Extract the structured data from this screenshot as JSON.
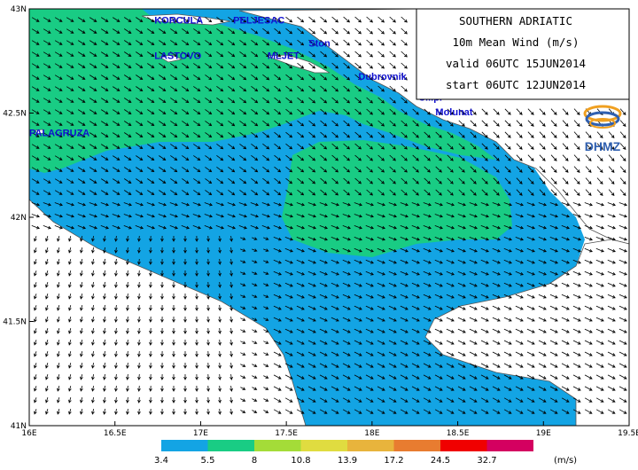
{
  "title_box": {
    "region": "SOUTHERN ADRIATIC",
    "field": "10m Mean Wind (m/s)",
    "valid": "valid 06UTC 15JUN2014",
    "start": "start 06UTC 12JUN2014"
  },
  "logo": {
    "text": "DHMZ"
  },
  "places": [
    {
      "name": "KORCULA",
      "lon": 16.73,
      "lat": 42.93
    },
    {
      "name": "PELJESAC",
      "lon": 17.19,
      "lat": 42.93
    },
    {
      "name": "Ston",
      "lon": 17.63,
      "lat": 42.82
    },
    {
      "name": "LASTOVO",
      "lon": 16.73,
      "lat": 42.76
    },
    {
      "name": "MLJET",
      "lon": 17.39,
      "lat": 42.76
    },
    {
      "name": "Dubrovnik",
      "lon": 17.92,
      "lat": 42.66
    },
    {
      "name": "Cilipi",
      "lon": 18.27,
      "lat": 42.56
    },
    {
      "name": "Molunat",
      "lon": 18.37,
      "lat": 42.49
    },
    {
      "name": "PALAGRUZA",
      "lon": 16.0,
      "lat": 42.39
    }
  ],
  "axes": {
    "x_ticks": [
      "16E",
      "16.5E",
      "17E",
      "17.5E",
      "18E",
      "18.5E",
      "19E",
      "19.5E"
    ],
    "y_ticks": [
      "41N",
      "41.5N",
      "42N",
      "42.5N",
      "43N"
    ]
  },
  "color_scale": {
    "unit": "(m/s)",
    "bounds": [
      "3.4",
      "5.5",
      "8",
      "10.8",
      "13.9",
      "17.2",
      "24.5",
      "32.7"
    ],
    "colors": [
      "#13a4e4",
      "#19cc84",
      "#a4dc38",
      "#e0dc40",
      "#e8b43c",
      "#e87c30",
      "#f00000",
      "#d40060"
    ]
  },
  "colors": {
    "sea_blue": "#13a4e4",
    "sea_green": "#19cc84",
    "land": "#ffffff",
    "place_text": "#1010d0"
  }
}
